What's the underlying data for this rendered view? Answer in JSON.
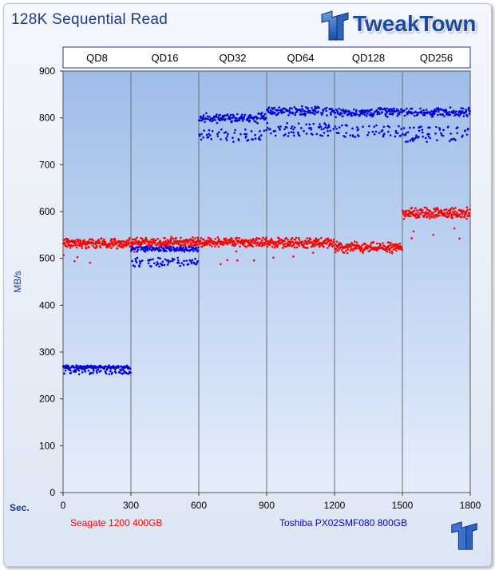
{
  "title": "128K Sequential Read",
  "brand": "TweakTown",
  "colors": {
    "series1": "#ff0000",
    "series2": "#0000dd",
    "plot_bg_top": "#9fbde9",
    "plot_bg_bottom": "#e6eefb",
    "title": "#1f3b86"
  },
  "chart_data": {
    "type": "scatter",
    "title": "128K Sequential Read",
    "xlabel": "Sec.",
    "ylabel": "MB/s",
    "xlim": [
      0,
      1800
    ],
    "ylim": [
      0,
      900
    ],
    "xticks": [
      0,
      300,
      600,
      900,
      1200,
      1500,
      1800
    ],
    "yticks": [
      0,
      100,
      200,
      300,
      400,
      500,
      600,
      700,
      800,
      900
    ],
    "grid": true,
    "phases": [
      {
        "label": "QD8",
        "x_start": 0,
        "x_end": 300
      },
      {
        "label": "QD16",
        "x_start": 300,
        "x_end": 600
      },
      {
        "label": "QD32",
        "x_start": 600,
        "x_end": 900
      },
      {
        "label": "QD64",
        "x_start": 900,
        "x_end": 1200
      },
      {
        "label": "QD128",
        "x_start": 1200,
        "x_end": 1500
      },
      {
        "label": "QD256",
        "x_start": 1500,
        "x_end": 1800
      }
    ],
    "series": [
      {
        "name": "Seagate 1200 400GB",
        "color": "#ff0000",
        "segments": [
          {
            "x_start": 0,
            "x_end": 300,
            "center": 532,
            "spread": 13
          },
          {
            "x_start": 300,
            "x_end": 600,
            "center": 534,
            "spread": 13
          },
          {
            "x_start": 600,
            "x_end": 900,
            "center": 535,
            "spread": 12
          },
          {
            "x_start": 900,
            "x_end": 1200,
            "center": 533,
            "spread": 13
          },
          {
            "x_start": 1200,
            "x_end": 1500,
            "center": 523,
            "spread": 14
          },
          {
            "x_start": 1500,
            "x_end": 1800,
            "center": 597,
            "spread": 14
          }
        ]
      },
      {
        "name": "Toshiba PX02SMF080 800GB",
        "color": "#0000dd",
        "segments": [
          {
            "x_start": 0,
            "x_end": 300,
            "center": 268,
            "spread": 4,
            "low": 258
          },
          {
            "x_start": 300,
            "x_end": 600,
            "center": 520,
            "spread": 6,
            "low": 492
          },
          {
            "x_start": 600,
            "x_end": 900,
            "center": 800,
            "spread": 12,
            "low": 762
          },
          {
            "x_start": 900,
            "x_end": 1200,
            "center": 815,
            "spread": 12,
            "low": 775
          },
          {
            "x_start": 1200,
            "x_end": 1500,
            "center": 812,
            "spread": 11,
            "low": 772
          },
          {
            "x_start": 1500,
            "x_end": 1800,
            "center": 812,
            "spread": 11,
            "low": 765
          }
        ]
      }
    ]
  }
}
